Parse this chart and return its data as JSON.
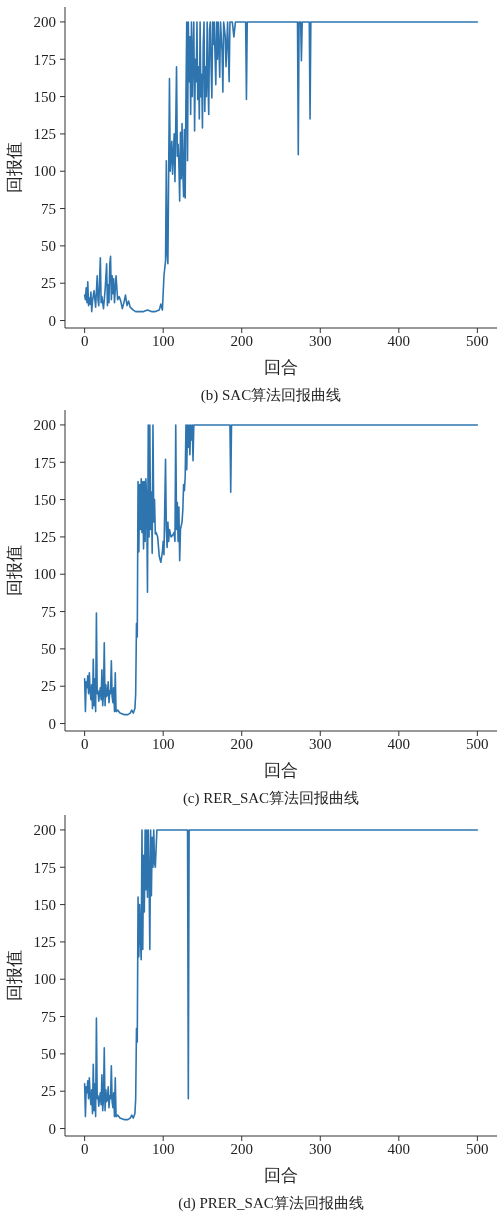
{
  "chart_data": [
    {
      "type": "line",
      "xlabel": "回合",
      "ylabel": "回报值",
      "annotations": [
        "(b) SAC算法回报曲线"
      ],
      "xlim": [
        -25,
        525
      ],
      "ylim": [
        -5,
        210
      ],
      "xticks": [
        0,
        100,
        200,
        300,
        400,
        500
      ],
      "yticks": [
        0,
        25,
        50,
        75,
        100,
        125,
        150,
        175,
        200
      ],
      "x": [
        0,
        1,
        2,
        3,
        4,
        5,
        6,
        7,
        8,
        9,
        10,
        12,
        14,
        16,
        17,
        18,
        20,
        21,
        22,
        24,
        26,
        28,
        29,
        30,
        31,
        32,
        33,
        34,
        35,
        36,
        37,
        38,
        40,
        42,
        44,
        46,
        48,
        50,
        52,
        54,
        56,
        58,
        60,
        62,
        65,
        70,
        75,
        80,
        85,
        90,
        95,
        97,
        99,
        101,
        103,
        104,
        105,
        106,
        108,
        109,
        111,
        112,
        114,
        115,
        117,
        118,
        119,
        120,
        121,
        122,
        123,
        124,
        125,
        126,
        127,
        128,
        129,
        130,
        131,
        132,
        133,
        134,
        135,
        136,
        137,
        138,
        139,
        140,
        141,
        142,
        143,
        144,
        145,
        146,
        147,
        148,
        149,
        150,
        151,
        152,
        153,
        154,
        155,
        156,
        157,
        158,
        159,
        160,
        161,
        162,
        163,
        164,
        165,
        166,
        167,
        168,
        169,
        170,
        172,
        173,
        175,
        176,
        177,
        179,
        180,
        182,
        184,
        185,
        186,
        188,
        190,
        192,
        197,
        205,
        206,
        207,
        271,
        272,
        273,
        275,
        276,
        277,
        286,
        287,
        288,
        500
      ],
      "series": [
        {
          "color": "#2e75b0",
          "values": [
            17,
            14,
            22,
            12,
            26,
            10,
            15,
            11,
            19,
            6,
            13,
            20,
            9,
            30,
            14,
            10,
            42,
            12,
            16,
            8,
            20,
            38,
            10,
            24,
            12,
            38,
            43,
            14,
            30,
            18,
            28,
            12,
            30,
            14,
            16,
            13,
            8,
            12,
            17,
            10,
            13,
            9,
            8,
            7,
            6,
            6,
            6,
            7,
            6,
            6,
            7,
            11,
            7,
            30,
            40,
            107,
            45,
            38,
            162,
            100,
            120,
            98,
            125,
            93,
            170,
            110,
            118,
            105,
            80,
            126,
            95,
            132,
            100,
            83,
            128,
            82,
            150,
            200,
            107,
            200,
            160,
            190,
            138,
            200,
            150,
            180,
            200,
            127,
            175,
            160,
            200,
            148,
            170,
            135,
            200,
            150,
            165,
            129,
            185,
            200,
            140,
            170,
            150,
            200,
            160,
            138,
            195,
            200,
            170,
            149,
            200,
            185,
            200,
            178,
            158,
            200,
            175,
            200,
            163,
            200,
            180,
            153,
            200,
            190,
            170,
            200,
            160,
            200,
            200,
            200,
            190,
            200,
            200,
            200,
            148,
            200,
            200,
            111,
            200,
            200,
            174,
            200,
            200,
            135,
            200,
            200
          ]
        }
      ]
    },
    {
      "type": "line",
      "xlabel": "回合",
      "ylabel": "回报值",
      "annotations": [
        "(c) RER_SAC算法回报曲线"
      ],
      "xlim": [
        -25,
        525
      ],
      "ylim": [
        -5,
        210
      ],
      "xticks": [
        0,
        100,
        200,
        300,
        400,
        500
      ],
      "yticks": [
        0,
        25,
        50,
        75,
        100,
        125,
        150,
        175,
        200
      ],
      "x": [
        0,
        1,
        2,
        3,
        4,
        5,
        6,
        7,
        8,
        9,
        10,
        11,
        12,
        13,
        14,
        15,
        16,
        17,
        18,
        19,
        20,
        21,
        22,
        23,
        24,
        25,
        26,
        27,
        28,
        29,
        30,
        31,
        32,
        33,
        34,
        35,
        36,
        37,
        38,
        39,
        40,
        42,
        45,
        50,
        55,
        58,
        60,
        62,
        64,
        65,
        66,
        67,
        68,
        69,
        70,
        71,
        72,
        73,
        74,
        75,
        76,
        77,
        78,
        79,
        80,
        81,
        82,
        83,
        84,
        85,
        86,
        87,
        88,
        89,
        90,
        91,
        93,
        95,
        97,
        99,
        100,
        101,
        103,
        104,
        105,
        106,
        107,
        108,
        110,
        112,
        114,
        115,
        116,
        117,
        118,
        119,
        120,
        121,
        122,
        124,
        125,
        126,
        127,
        128,
        129,
        130,
        131,
        132,
        133,
        134,
        135,
        136,
        137,
        138,
        139,
        185,
        186,
        187,
        500
      ],
      "series": [
        {
          "color": "#2e75b0",
          "values": [
            30,
            8,
            28,
            24,
            32,
            20,
            34,
            22,
            16,
            26,
            10,
            43,
            12,
            30,
            8,
            74,
            20,
            22,
            15,
            20,
            24,
            16,
            36,
            12,
            20,
            54,
            12,
            26,
            18,
            20,
            28,
            14,
            22,
            20,
            42,
            18,
            14,
            24,
            8,
            34,
            8,
            9,
            7,
            6,
            6,
            7,
            9,
            7,
            10,
            20,
            67,
            58,
            162,
            115,
            160,
            130,
            164,
            128,
            162,
            117,
            162,
            122,
            164,
            148,
            88,
            200,
            125,
            200,
            130,
            155,
            114,
            200,
            135,
            150,
            127,
            128,
            125,
            112,
            108,
            115,
            122,
            113,
            177,
            130,
            118,
            135,
            122,
            130,
            125,
            126,
            128,
            122,
            200,
            130,
            148,
            122,
            145,
            109,
            130,
            135,
            143,
            160,
            156,
            165,
            200,
            170,
            200,
            185,
            200,
            180,
            200,
            190,
            200,
            176,
            200,
            200,
            155,
            200,
            200
          ]
        }
      ]
    },
    {
      "type": "line",
      "xlabel": "回合",
      "ylabel": "回报值",
      "annotations": [
        "(d) PRER_SAC算法回报曲线"
      ],
      "xlim": [
        -25,
        525
      ],
      "ylim": [
        -5,
        210
      ],
      "xticks": [
        0,
        100,
        200,
        300,
        400,
        500
      ],
      "yticks": [
        0,
        25,
        50,
        75,
        100,
        125,
        150,
        175,
        200
      ],
      "x": [
        0,
        1,
        2,
        3,
        4,
        5,
        6,
        7,
        8,
        9,
        10,
        11,
        12,
        13,
        14,
        15,
        16,
        17,
        18,
        19,
        20,
        21,
        22,
        23,
        24,
        25,
        26,
        27,
        28,
        29,
        30,
        31,
        32,
        33,
        34,
        35,
        36,
        37,
        38,
        39,
        40,
        42,
        45,
        50,
        55,
        58,
        60,
        62,
        64,
        65,
        66,
        67,
        68,
        69,
        70,
        71,
        72,
        73,
        74,
        75,
        76,
        77,
        78,
        79,
        80,
        81,
        82,
        83,
        84,
        85,
        86,
        87,
        88,
        89,
        90,
        92,
        131,
        132,
        133,
        500
      ],
      "series": [
        {
          "color": "#2e75b0",
          "values": [
            30,
            8,
            28,
            24,
            32,
            20,
            34,
            22,
            16,
            26,
            10,
            43,
            12,
            30,
            8,
            74,
            20,
            22,
            15,
            20,
            24,
            16,
            36,
            12,
            20,
            54,
            12,
            26,
            18,
            20,
            28,
            14,
            22,
            20,
            42,
            18,
            14,
            24,
            8,
            34,
            8,
            9,
            7,
            6,
            6,
            7,
            9,
            7,
            10,
            20,
            67,
            58,
            155,
            115,
            150,
            128,
            113,
            200,
            120,
            183,
            145,
            200,
            160,
            200,
            155,
            200,
            170,
            120,
            200,
            156,
            195,
            175,
            200,
            178,
            175,
            200,
            200,
            20,
            200,
            200
          ]
        }
      ]
    }
  ]
}
